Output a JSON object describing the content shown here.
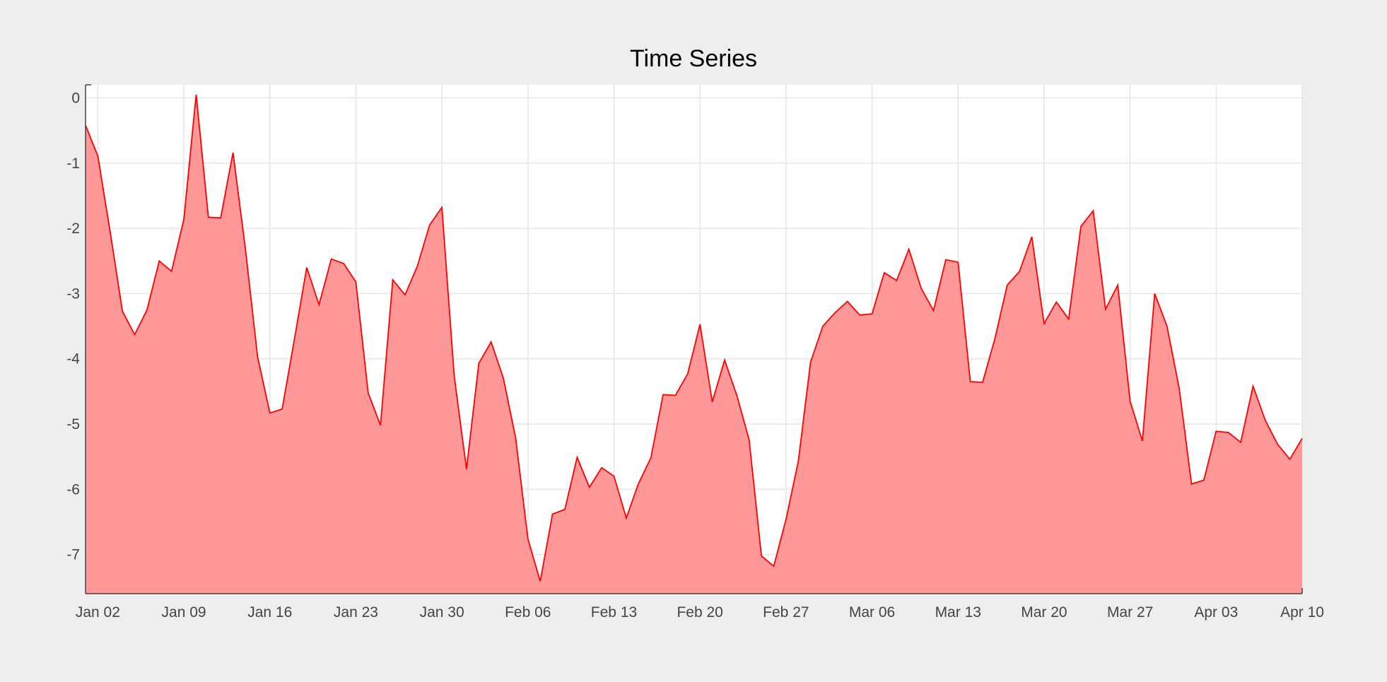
{
  "colors": {
    "background": "#eeeeee",
    "plot_background": "#ffffff",
    "grid": "#e6e6e6",
    "line": "#ff0000",
    "fill": "#ff9999",
    "axis": "#444444"
  },
  "chart_data": {
    "type": "area",
    "title": "Time Series",
    "xlabel": "",
    "ylabel": "",
    "grid": true,
    "legend": "none",
    "xlim": [
      "2023-01-01",
      "2023-04-10"
    ],
    "ylim": [
      -7.6,
      0.2
    ],
    "x_ticks": [
      "2023-01-02",
      "2023-01-09",
      "2023-01-16",
      "2023-01-23",
      "2023-01-30",
      "2023-02-06",
      "2023-02-13",
      "2023-02-20",
      "2023-02-27",
      "2023-03-06",
      "2023-03-13",
      "2023-03-20",
      "2023-03-27",
      "2023-04-03",
      "2023-04-10"
    ],
    "x_tick_labels": [
      "Jan 02",
      "Jan 09",
      "Jan 16",
      "Jan 23",
      "Jan 30",
      "Feb 06",
      "Feb 13",
      "Feb 20",
      "Feb 27",
      "Mar 06",
      "Mar 13",
      "Mar 20",
      "Mar 27",
      "Apr 03",
      "Apr 10"
    ],
    "y_ticks": [
      0,
      -1,
      -2,
      -3,
      -4,
      -5,
      -6,
      -7
    ],
    "y_tick_labels": [
      "0",
      "-1",
      "-2",
      "-3",
      "-4",
      "-5",
      "-6",
      "-7"
    ],
    "x": [
      "2023-01-01",
      "2023-01-02",
      "2023-01-03",
      "2023-01-04",
      "2023-01-05",
      "2023-01-06",
      "2023-01-07",
      "2023-01-08",
      "2023-01-09",
      "2023-01-10",
      "2023-01-11",
      "2023-01-12",
      "2023-01-13",
      "2023-01-14",
      "2023-01-15",
      "2023-01-16",
      "2023-01-17",
      "2023-01-18",
      "2023-01-19",
      "2023-01-20",
      "2023-01-21",
      "2023-01-22",
      "2023-01-23",
      "2023-01-24",
      "2023-01-25",
      "2023-01-26",
      "2023-01-27",
      "2023-01-28",
      "2023-01-29",
      "2023-01-30",
      "2023-01-31",
      "2023-02-01",
      "2023-02-02",
      "2023-02-03",
      "2023-02-04",
      "2023-02-05",
      "2023-02-06",
      "2023-02-07",
      "2023-02-08",
      "2023-02-09",
      "2023-02-10",
      "2023-02-11",
      "2023-02-12",
      "2023-02-13",
      "2023-02-14",
      "2023-02-15",
      "2023-02-16",
      "2023-02-17",
      "2023-02-18",
      "2023-02-19",
      "2023-02-20",
      "2023-02-21",
      "2023-02-22",
      "2023-02-23",
      "2023-02-24",
      "2023-02-25",
      "2023-02-26",
      "2023-02-27",
      "2023-02-28",
      "2023-03-01",
      "2023-03-02",
      "2023-03-03",
      "2023-03-04",
      "2023-03-05",
      "2023-03-06",
      "2023-03-07",
      "2023-03-08",
      "2023-03-09",
      "2023-03-10",
      "2023-03-11",
      "2023-03-12",
      "2023-03-13",
      "2023-03-14",
      "2023-03-15",
      "2023-03-16",
      "2023-03-17",
      "2023-03-18",
      "2023-03-19",
      "2023-03-20",
      "2023-03-21",
      "2023-03-22",
      "2023-03-23",
      "2023-03-24",
      "2023-03-25",
      "2023-03-26",
      "2023-03-27",
      "2023-03-28",
      "2023-03-29",
      "2023-03-30",
      "2023-03-31",
      "2023-04-01",
      "2023-04-02",
      "2023-04-03",
      "2023-04-04",
      "2023-04-05",
      "2023-04-06",
      "2023-04-07",
      "2023-04-08",
      "2023-04-09",
      "2023-04-10"
    ],
    "y": [
      -0.42,
      -0.89,
      -2.05,
      -3.27,
      -3.63,
      -3.25,
      -2.5,
      -2.66,
      -1.86,
      0.05,
      -1.83,
      -1.84,
      -0.84,
      -2.3,
      -3.97,
      -4.83,
      -4.77,
      -3.7,
      -2.6,
      -3.17,
      -2.47,
      -2.54,
      -2.82,
      -4.52,
      -5.02,
      -2.79,
      -3.02,
      -2.58,
      -1.95,
      -1.68,
      -4.26,
      -5.69,
      -4.07,
      -3.74,
      -4.3,
      -5.21,
      -6.76,
      -7.41,
      -6.38,
      -6.31,
      -5.51,
      -5.97,
      -5.67,
      -5.8,
      -6.44,
      -5.91,
      -5.52,
      -4.55,
      -4.56,
      -4.23,
      -3.47,
      -4.66,
      -4.02,
      -4.56,
      -5.24,
      -7.02,
      -7.18,
      -6.46,
      -5.57,
      -4.05,
      -3.5,
      -3.29,
      -3.12,
      -3.33,
      -3.31,
      -2.68,
      -2.8,
      -2.32,
      -2.92,
      -3.26,
      -2.48,
      -2.52,
      -4.35,
      -4.36,
      -3.69,
      -2.87,
      -2.66,
      -2.13,
      -3.46,
      -3.13,
      -3.39,
      -1.97,
      -1.73,
      -3.24,
      -2.87,
      -4.65,
      -5.26,
      -3.0,
      -3.5,
      -4.46,
      -5.92,
      -5.86,
      -5.11,
      -5.13,
      -5.28,
      -4.42,
      -4.94,
      -5.31,
      -5.54,
      -5.22
    ]
  }
}
